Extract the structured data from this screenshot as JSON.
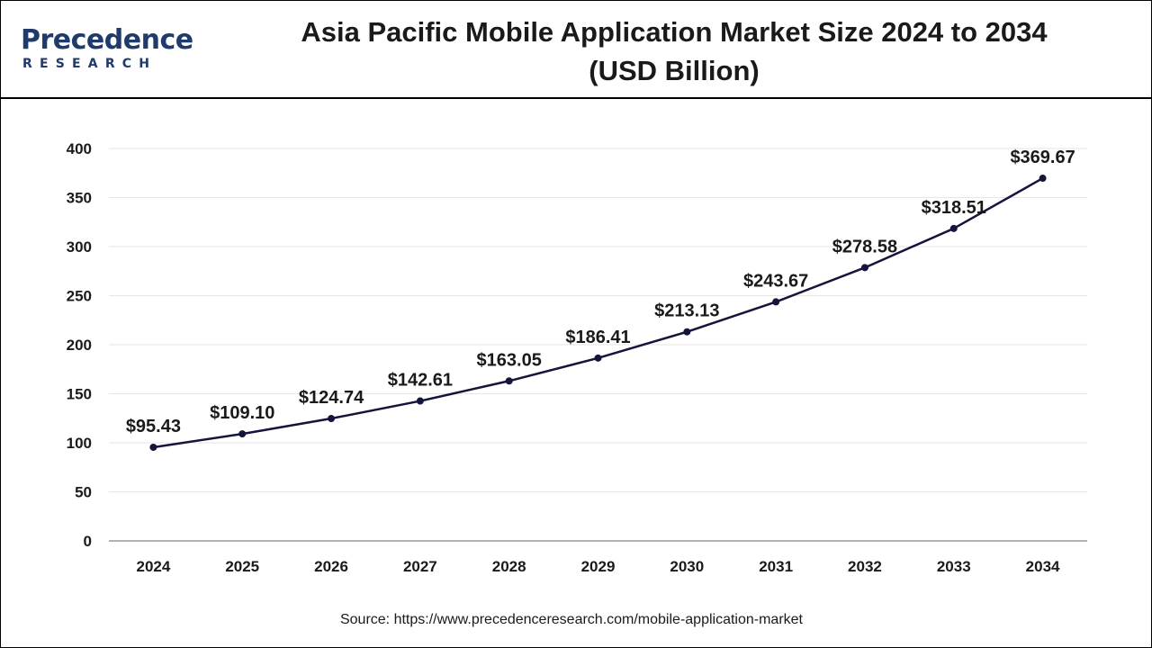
{
  "header": {
    "logo_name": "Precedence",
    "logo_sub": "RESEARCH",
    "title_line1": "Asia Pacific Mobile Application Market Size 2024 to 2034",
    "title_line2": "(USD Billion)"
  },
  "footer": {
    "source": "Source: https://www.precedenceresearch.com/mobile-application-market"
  },
  "colors": {
    "line": "#14143c",
    "grid": "#e6e6e6",
    "axis": "#9a9a9a",
    "brand": "#1f3a6b"
  },
  "chart_data": {
    "type": "line",
    "title": "Asia Pacific Mobile Application Market Size 2024 to 2034 (USD Billion)",
    "categories": [
      "2024",
      "2025",
      "2026",
      "2027",
      "2028",
      "2029",
      "2030",
      "2031",
      "2032",
      "2033",
      "2034"
    ],
    "values": [
      95.43,
      109.1,
      124.74,
      142.61,
      163.05,
      186.41,
      213.13,
      243.67,
      278.58,
      318.51,
      369.67
    ],
    "data_labels": [
      "$95.43",
      "$109.10",
      "$124.74",
      "$142.61",
      "$163.05",
      "$186.41",
      "$213.13",
      "$243.67",
      "$278.58",
      "$318.51",
      "$369.67"
    ],
    "ylim": [
      0,
      400
    ],
    "yticks": [
      0,
      50,
      100,
      150,
      200,
      250,
      300,
      350,
      400
    ],
    "grid": true,
    "legend": "none"
  }
}
